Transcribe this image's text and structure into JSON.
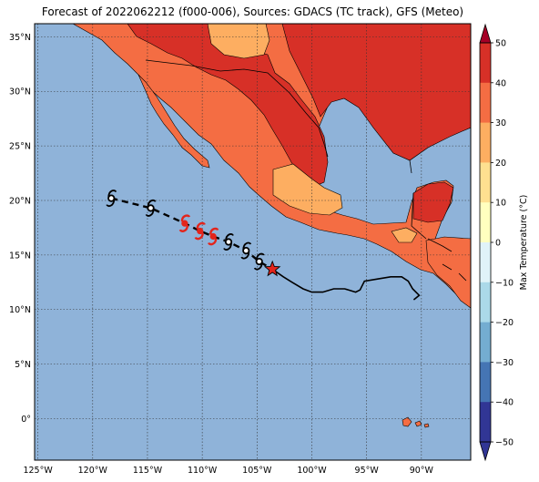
{
  "title": "Forecast of 2022062212 (f000-006), Sources: GDACS (TC track), GFS (Meteo)",
  "map": {
    "lon_range": [
      -125.3,
      -85.5
    ],
    "lat_range": [
      -3.8,
      36.2
    ],
    "lat_ticks": [
      {
        "value": 35,
        "label": "35°N"
      },
      {
        "value": 30,
        "label": "30°N"
      },
      {
        "value": 25,
        "label": "25°N"
      },
      {
        "value": 20,
        "label": "20°N"
      },
      {
        "value": 15,
        "label": "15°N"
      },
      {
        "value": 10,
        "label": "10°N"
      },
      {
        "value": 5,
        "label": "5°N"
      },
      {
        "value": 0,
        "label": "0°"
      }
    ],
    "lon_ticks": [
      {
        "value": -125,
        "label": "125°W"
      },
      {
        "value": -120,
        "label": "120°W"
      },
      {
        "value": -115,
        "label": "115°W"
      },
      {
        "value": -110,
        "label": "110°W"
      },
      {
        "value": -105,
        "label": "105°W"
      },
      {
        "value": -100,
        "label": "100°W"
      },
      {
        "value": -95,
        "label": "95°W"
      },
      {
        "value": -90,
        "label": "90°W"
      }
    ],
    "grid": "dotted",
    "colors": {
      "ocean": "#8fb3d9",
      "land_20_30": "#f46d43",
      "land_30_40": "#d73027",
      "land_10_20": "#fdae61",
      "track": "#000000",
      "current_position": "#e3241b",
      "storm_symbol_strong": "#e3241b",
      "storm_symbol_weak": "#000000"
    }
  },
  "track": {
    "forecast": [
      {
        "lon": -118.3,
        "lat": 20.2,
        "category": "weak"
      },
      {
        "lon": -114.7,
        "lat": 19.3,
        "category": "weak"
      },
      {
        "lon": -111.6,
        "lat": 17.9,
        "category": "strong"
      },
      {
        "lon": -110.2,
        "lat": 17.2,
        "category": "strong"
      },
      {
        "lon": -109.0,
        "lat": 16.7,
        "category": "strong"
      },
      {
        "lon": -107.6,
        "lat": 16.2,
        "category": "weak"
      },
      {
        "lon": -106.0,
        "lat": 15.4,
        "category": "weak"
      },
      {
        "lon": -104.8,
        "lat": 14.4,
        "category": "weak"
      }
    ],
    "current": {
      "lon": -103.6,
      "lat": 13.7
    },
    "past": [
      [
        -103.6,
        13.7
      ],
      [
        -102.6,
        13.0
      ],
      [
        -101.8,
        12.5
      ],
      [
        -100.8,
        11.9
      ],
      [
        -100.0,
        11.6
      ],
      [
        -99.0,
        11.6
      ],
      [
        -98.0,
        11.9
      ],
      [
        -97.0,
        11.9
      ],
      [
        -96.0,
        11.6
      ],
      [
        -95.6,
        11.8
      ],
      [
        -95.2,
        12.6
      ],
      [
        -94.0,
        12.8
      ],
      [
        -92.8,
        13.0
      ],
      [
        -91.8,
        13.0
      ],
      [
        -91.2,
        12.6
      ],
      [
        -90.8,
        11.9
      ],
      [
        -90.2,
        11.3
      ],
      [
        -90.7,
        10.9
      ]
    ]
  },
  "colorbar": {
    "label": "Max Temperature (°C)",
    "range": [
      -50,
      50
    ],
    "ticks": [
      "50",
      "40",
      "30",
      "20",
      "10",
      "0",
      "−10",
      "−20",
      "−30",
      "−40",
      "−50"
    ],
    "colors": [
      "#313695",
      "#4575b4",
      "#74add1",
      "#abd9e9",
      "#e0f3f8",
      "#ffffbf",
      "#fee090",
      "#fdae61",
      "#f46d43",
      "#d73027",
      "#a50026"
    ],
    "extend": "both"
  }
}
